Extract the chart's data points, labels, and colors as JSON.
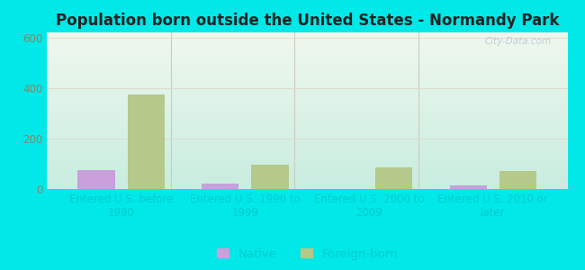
{
  "title": "Population born outside the United States - Normandy Park",
  "categories": [
    "Entered U.S. before\n1990",
    "Entered U.S. 1990 to\n1999",
    "Entered U.S. 2000 to\n2009",
    "Entered U.S. 2010 or\nlater"
  ],
  "native_values": [
    75,
    20,
    0,
    15
  ],
  "foreign_born_values": [
    375,
    95,
    85,
    70
  ],
  "native_color": "#c9a0dc",
  "foreign_born_color": "#b5c98a",
  "bg_top_color": "#f0f8ee",
  "bg_bottom_color": "#c8ede0",
  "ylim": [
    0,
    620
  ],
  "yticks": [
    0,
    200,
    400,
    600
  ],
  "bar_width": 0.3,
  "bg_outer": "#00e8e8",
  "watermark": "City-Data.com",
  "title_fontsize": 12,
  "tick_fontsize": 8.5,
  "legend_fontsize": 9.5,
  "xtick_color": "#00cccc",
  "ytick_color": "#888866",
  "grid_color": "#ddddcc",
  "separator_color": "#ccccbb"
}
